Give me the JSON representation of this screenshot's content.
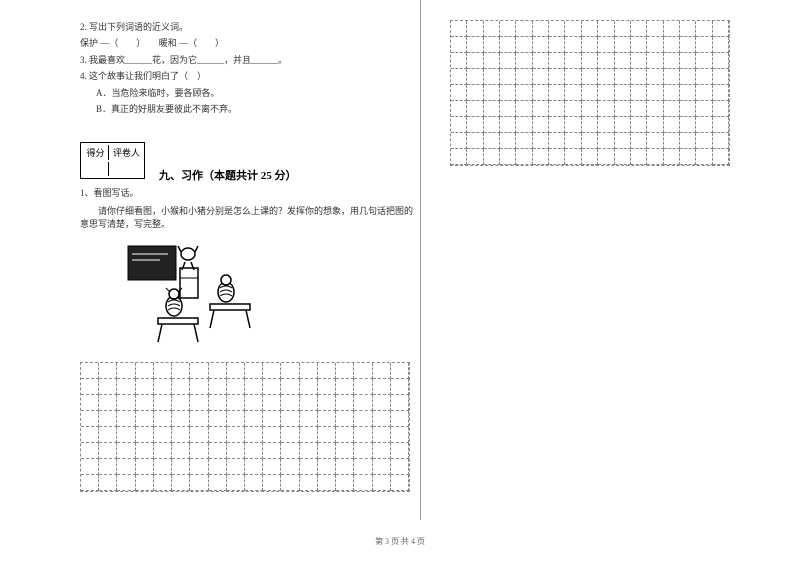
{
  "questions": {
    "q2": "2. 写出下列词语的近义词。",
    "q2_line": "保护 —（　　）　　暖和 —（　　）",
    "q3": "3. 我最喜欢______花，因为它______，并且______。",
    "q4": "4. 这个故事让我们明白了（　）",
    "q4a": "A．当危险来临时，要各顾各。",
    "q4b": "B．真正的好朋友要彼此不离不弃。"
  },
  "scorebox": {
    "c1": "得分",
    "c2": "评卷人"
  },
  "section9": {
    "title": "九、习作（本题共计 25 分）",
    "sub": "1、看图写话。",
    "desc": "　　请你仔细看图，小猴和小猪分别是怎么上课的？发挥你的想象，用几句话把图的意思写清楚，写完整。"
  },
  "footer": "第 3 页  共 4 页",
  "grid_left": {
    "cols": 18,
    "rows": 8
  },
  "grid_right": {
    "cols": 17,
    "rows": 9
  }
}
